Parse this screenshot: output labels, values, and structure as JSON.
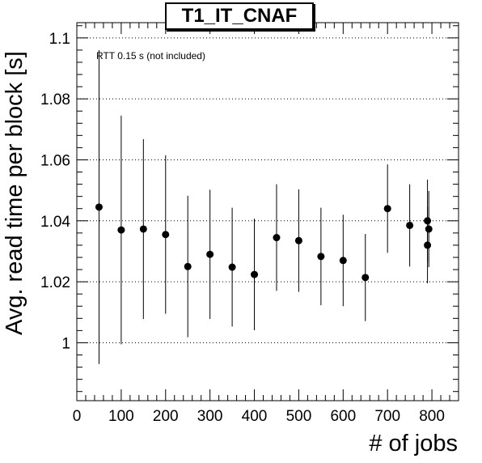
{
  "chart_data": {
    "type": "scatter",
    "title": "T1_IT_CNAF",
    "xlabel": "# of jobs",
    "ylabel": "Avg. read time per block [s]",
    "annotation": "RTT 0.15 s (not included)",
    "xlim": [
      0,
      860
    ],
    "ylim": [
      0.981,
      1.105
    ],
    "x_ticks": [
      0,
      100,
      200,
      300,
      400,
      500,
      600,
      700,
      800
    ],
    "y_ticks": [
      1,
      1.02,
      1.04,
      1.06,
      1.08,
      1.1
    ],
    "y_tick_labels": [
      "1",
      "1.02",
      "1.04",
      "1.06",
      "1.08",
      "1.1"
    ],
    "grid": "horizontal dotted",
    "color": "#000000",
    "points": [
      {
        "x": 50,
        "y": 1.0445,
        "err": 0.0515
      },
      {
        "x": 100,
        "y": 1.037,
        "err": 0.0375
      },
      {
        "x": 150,
        "y": 1.0373,
        "err": 0.0295
      },
      {
        "x": 200,
        "y": 1.0355,
        "err": 0.026
      },
      {
        "x": 250,
        "y": 1.025,
        "err": 0.0232
      },
      {
        "x": 300,
        "y": 1.029,
        "err": 0.0212
      },
      {
        "x": 350,
        "y": 1.0248,
        "err": 0.0195
      },
      {
        "x": 400,
        "y": 1.0224,
        "err": 0.0183
      },
      {
        "x": 450,
        "y": 1.0345,
        "err": 0.0175
      },
      {
        "x": 500,
        "y": 1.0335,
        "err": 0.0168
      },
      {
        "x": 550,
        "y": 1.0283,
        "err": 0.016
      },
      {
        "x": 600,
        "y": 1.027,
        "err": 0.015
      },
      {
        "x": 650,
        "y": 1.0214,
        "err": 0.0143
      },
      {
        "x": 700,
        "y": 1.044,
        "err": 0.0145
      },
      {
        "x": 750,
        "y": 1.0385,
        "err": 0.0135
      },
      {
        "x": 790,
        "y": 1.04,
        "err": 0.0135
      },
      {
        "x": 793,
        "y": 1.0373,
        "err": 0.0125
      },
      {
        "x": 790,
        "y": 1.032,
        "err": 0.0125
      }
    ]
  }
}
